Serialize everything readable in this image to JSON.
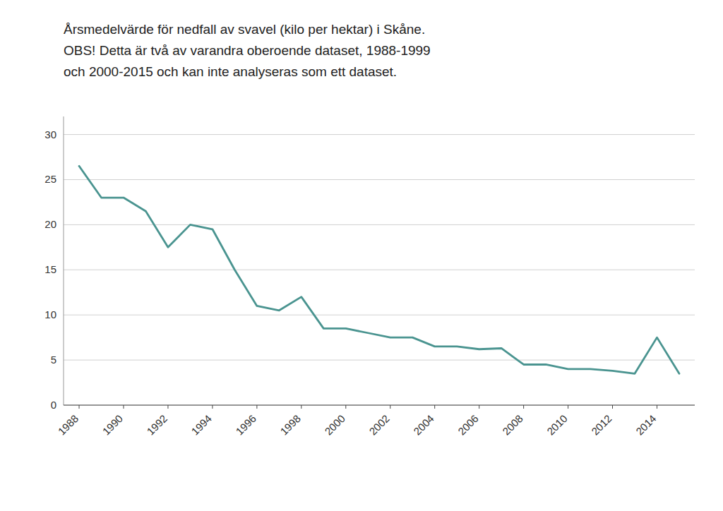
{
  "chart_data": {
    "type": "line",
    "title": [
      "Årsmedelvärde för nedfall av svavel (kilo per hektar) i Skåne.",
      "OBS! Detta är två av varandra oberoende dataset, 1988-1999",
      "och 2000-2015 och kan inte analyseras som ett dataset."
    ],
    "x": [
      1988,
      1989,
      1990,
      1991,
      1992,
      1993,
      1994,
      1995,
      1996,
      1997,
      1998,
      1999,
      2000,
      2001,
      2002,
      2003,
      2004,
      2005,
      2006,
      2007,
      2008,
      2009,
      2010,
      2011,
      2012,
      2013,
      2014,
      2015
    ],
    "values": [
      26.5,
      23.0,
      23.0,
      21.5,
      17.5,
      20.0,
      19.5,
      15.0,
      11.0,
      10.5,
      12.0,
      8.5,
      8.5,
      8.0,
      7.5,
      7.5,
      6.5,
      6.5,
      6.2,
      6.3,
      4.5,
      4.5,
      4.0,
      4.0,
      3.8,
      3.5,
      7.5,
      3.5
    ],
    "color": "#4a9490",
    "xlim": [
      1987.3,
      2015.7
    ],
    "xticks": [
      1988,
      1990,
      1992,
      1994,
      1996,
      1998,
      2000,
      2002,
      2004,
      2006,
      2008,
      2010,
      2012,
      2014
    ],
    "ylim": [
      0,
      32
    ],
    "yticks": [
      0,
      5,
      10,
      15,
      20,
      25,
      30
    ],
    "grid": true
  }
}
